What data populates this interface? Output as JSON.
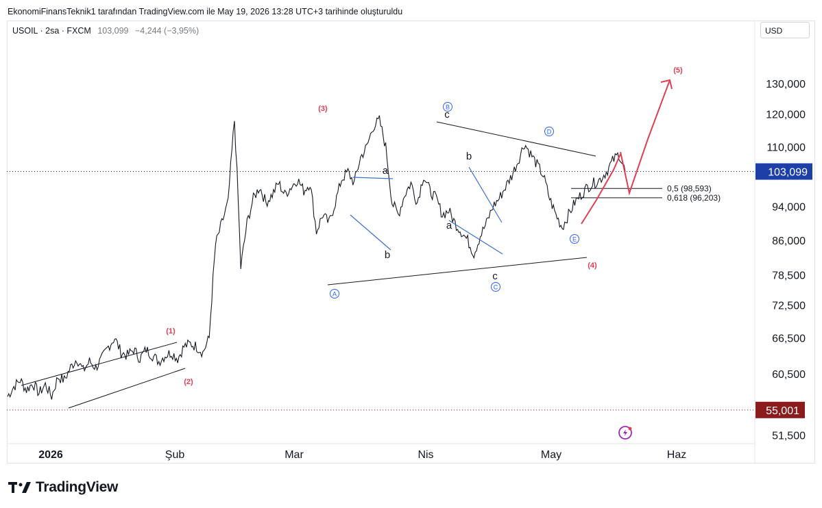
{
  "header": {
    "caption": "EkonomiFinansTeknik1 tarafından TradingView.com ile May 19, 2026 13:28 UTC+3 tarihinde oluşturuldu"
  },
  "legend": {
    "symbol": "USOIL · 2sa · FXCM",
    "price": "103,099",
    "change": "−4,244 (−3,95%)"
  },
  "currency_button": "USD",
  "footer": {
    "brand": "TradingView"
  },
  "colors": {
    "accent_red": "#e03e52",
    "wave_blue": "#2962ff",
    "candle": "#131722",
    "last_price_bg": "#1c3fa8",
    "low_label_bg": "#8b1c1c"
  },
  "chart_data": {
    "type": "line",
    "title": "",
    "y_scale": "log",
    "ylim": [
      49000,
      150000
    ],
    "y_ticks": [
      51500,
      55001,
      60500,
      66500,
      72500,
      78500,
      86000,
      94000,
      103099,
      110000,
      120000,
      130000
    ],
    "y_tick_labels": [
      "51,500",
      "55,001",
      "60,500",
      "66,500",
      "72,500",
      "78,500",
      "86,000",
      "94,000",
      "103,099",
      "110,000",
      "120,000",
      "130,000"
    ],
    "x_ticks": [
      "2026",
      "Şub",
      "Mar",
      "Nis",
      "May",
      "Haz"
    ],
    "last_price": {
      "value": 103099,
      "label": "103,099"
    },
    "low_marker": {
      "value": 55001,
      "label": "55,001"
    },
    "series": [
      {
        "values": [
          57000,
          58500,
          59500,
          58000,
          59000,
          57500,
          58800,
          57000,
          60000,
          59500,
          61500,
          63000,
          61000,
          62500,
          61500,
          63000,
          65000,
          66500,
          64000,
          63500,
          64500,
          63000,
          64500,
          63500,
          62500,
          63500,
          64000,
          63000,
          65000,
          65500,
          65000,
          64000,
          66500,
          85000,
          90000,
          95000,
          118000,
          80000,
          90000,
          96000,
          99000,
          95000,
          97000,
          100000,
          97000,
          99000,
          101000,
          98000,
          100000,
          88000,
          92000,
          90000,
          95000,
          101000,
          103000,
          100000,
          107000,
          110000,
          116000,
          118000,
          110000,
          95000,
          92000,
          97000,
          100000,
          95000,
          102000,
          98000,
          96000,
          92000,
          93000,
          90000,
          88000,
          86000,
          83000,
          87000,
          90000,
          94000,
          96000,
          99000,
          102000,
          106000,
          111000,
          108000,
          105000,
          102000,
          96000,
          92000,
          89000,
          92000,
          95000,
          97000,
          99000,
          100000,
          101000,
          103000,
          106000,
          108000,
          103099
        ]
      }
    ],
    "fib_levels": [
      {
        "label": "0,5 (98,593)",
        "value": 98593
      },
      {
        "label": "0,618 (96,203)",
        "value": 96203
      }
    ],
    "wave_labels": [
      "(1)",
      "(2)",
      "(3)",
      "(4)",
      "(5)",
      "A",
      "B",
      "C",
      "D",
      "E",
      "a",
      "b",
      "c",
      "a",
      "b",
      "c"
    ]
  }
}
